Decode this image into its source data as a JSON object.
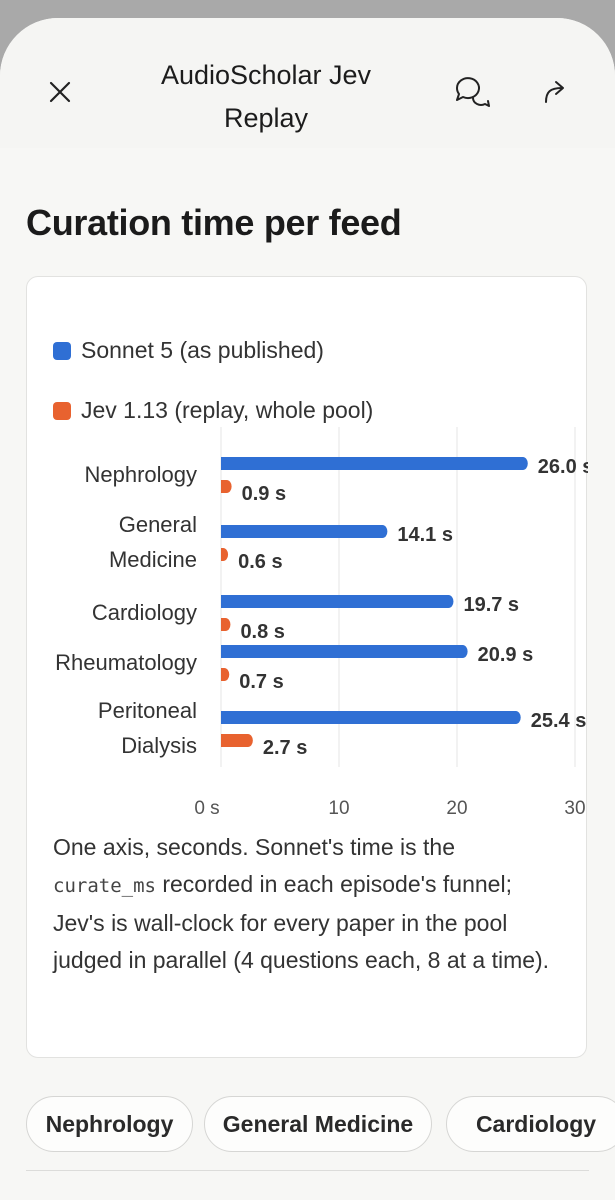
{
  "header": {
    "title_line1": "AudioScholar Jev",
    "title_line2": "Replay",
    "close_icon": "close-icon",
    "chat_icon": "chat-bubbles-icon",
    "share_icon": "share-arrow-icon"
  },
  "page_title": "Curation time per feed",
  "caption": {
    "part1": "One axis, seconds. Sonnet's time is the ",
    "code": "curate_ms",
    "part2": " recorded in each episode's funnel; Jev's is wall-clock for every paper in the pool judged in parallel (4 questions each, 8 at a time)."
  },
  "chips": [
    "Nephrology",
    "General Medicine",
    "Cardiology"
  ],
  "colors": {
    "sonnet": "#2f6fd4",
    "jev": "#e8622f",
    "grid": "#e4e4e4",
    "axis_text": "#555555"
  },
  "chart_data": {
    "type": "bar",
    "orientation": "horizontal",
    "categories": [
      [
        "Nephrology"
      ],
      [
        "General",
        "Medicine"
      ],
      [
        "Cardiology"
      ],
      [
        "Rheumatology"
      ],
      [
        "Peritoneal",
        "Dialysis"
      ]
    ],
    "series": [
      {
        "name": "Sonnet 5 (as published)",
        "values": [
          26.0,
          14.1,
          19.7,
          20.9,
          25.4
        ],
        "labels": [
          "26.0 s",
          "14.1 s",
          "19.7 s",
          "20.9 s",
          "25.4 s"
        ]
      },
      {
        "name": "Jev 1.13 (replay, whole pool)",
        "values": [
          0.9,
          0.6,
          0.8,
          0.7,
          2.7
        ],
        "labels": [
          "0.9 s",
          "0.6 s",
          "0.8 s",
          "0.7 s",
          "2.7 s"
        ]
      }
    ],
    "xlim": [
      0,
      30
    ],
    "ticks": [
      "0 s",
      "10",
      "20",
      "30"
    ],
    "grid": true,
    "legend": "top-left"
  }
}
